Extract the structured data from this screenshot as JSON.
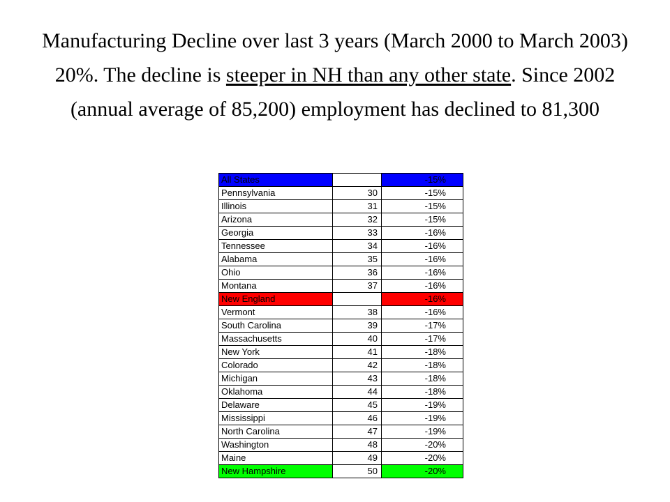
{
  "title": {
    "part1": "Manufacturing Decline over last 3 years (March 2000 to March 2003) 20%.  The decline is ",
    "underlined": "steeper in NH than any other state",
    "part2": ".  Since 2002 (annual average of 85,200) employment has declined to 81,300"
  },
  "table": {
    "rows": [
      {
        "state": "All States",
        "rank": "",
        "change": "-15%",
        "highlight": "#0000ff"
      },
      {
        "state": "Pennsylvania",
        "rank": "30",
        "change": "-15%"
      },
      {
        "state": "Illinois",
        "rank": "31",
        "change": "-15%"
      },
      {
        "state": "Arizona",
        "rank": "32",
        "change": "-15%"
      },
      {
        "state": "Georgia",
        "rank": "33",
        "change": "-16%"
      },
      {
        "state": "Tennessee",
        "rank": "34",
        "change": "-16%"
      },
      {
        "state": "Alabama",
        "rank": "35",
        "change": "-16%"
      },
      {
        "state": "Ohio",
        "rank": "36",
        "change": "-16%"
      },
      {
        "state": "Montana",
        "rank": "37",
        "change": "-16%"
      },
      {
        "state": "New England",
        "rank": "",
        "change": "-16%",
        "highlight": "#ff0000"
      },
      {
        "state": "Vermont",
        "rank": "38",
        "change": "-16%"
      },
      {
        "state": "South Carolina",
        "rank": "39",
        "change": "-17%"
      },
      {
        "state": "Massachusetts",
        "rank": "40",
        "change": "-17%"
      },
      {
        "state": "New York",
        "rank": "41",
        "change": "-18%"
      },
      {
        "state": "Colorado",
        "rank": "42",
        "change": "-18%"
      },
      {
        "state": "Michigan",
        "rank": "43",
        "change": "-18%"
      },
      {
        "state": "Oklahoma",
        "rank": "44",
        "change": "-18%"
      },
      {
        "state": "Delaware",
        "rank": "45",
        "change": "-19%"
      },
      {
        "state": "Mississippi",
        "rank": "46",
        "change": "-19%"
      },
      {
        "state": "North Carolina",
        "rank": "47",
        "change": "-19%"
      },
      {
        "state": "Washington",
        "rank": "48",
        "change": "-20%"
      },
      {
        "state": "Maine",
        "rank": "49",
        "change": "-20%"
      },
      {
        "state": "New Hampshire",
        "rank": "50",
        "change": "-20%",
        "highlight": "#00ff00"
      }
    ]
  }
}
